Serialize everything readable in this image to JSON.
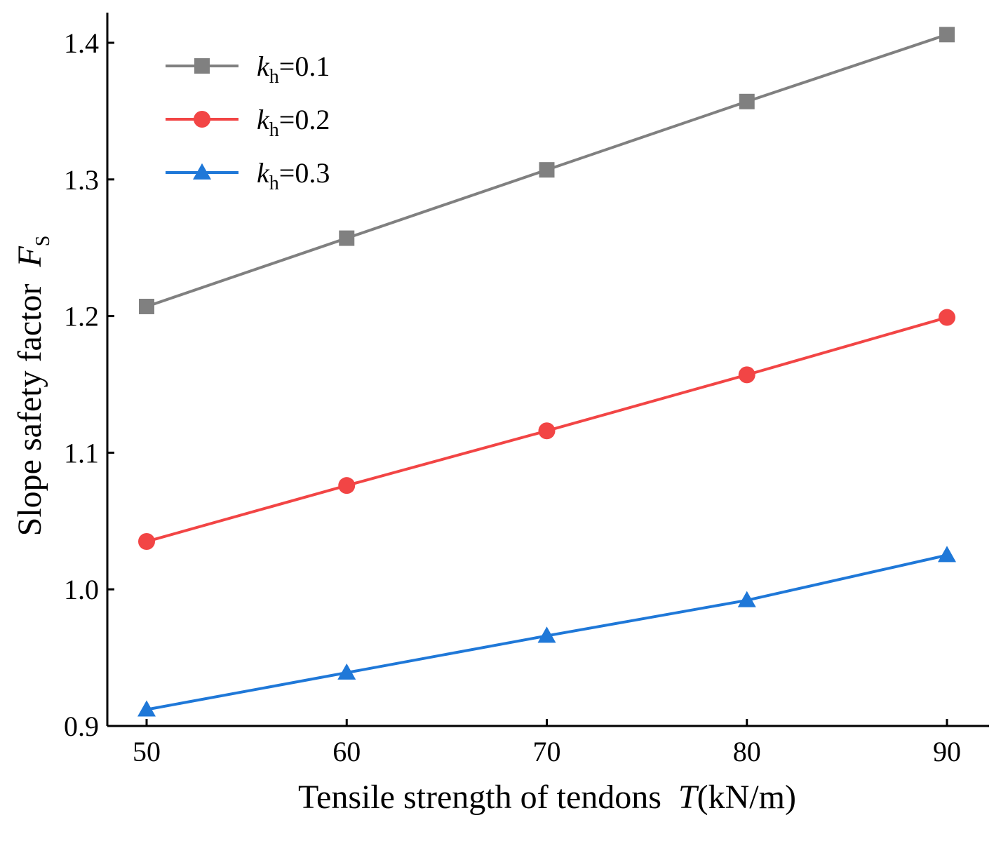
{
  "chart_data": {
    "type": "line",
    "title": "",
    "xlabel": {
      "text": "Tensile strength of tendons",
      "symbol": "T",
      "unit": "(kN/m)"
    },
    "ylabel": {
      "text": "Slope safety factor",
      "symbol": "F",
      "subscript": "S"
    },
    "x": [
      50,
      60,
      70,
      80,
      90
    ],
    "x_tick_labels": [
      "50",
      "60",
      "70",
      "80",
      "90"
    ],
    "xlim": [
      48,
      92
    ],
    "ylim": [
      0.9,
      1.42
    ],
    "y_ticks": [
      0.9,
      1.0,
      1.1,
      1.2,
      1.3,
      1.4
    ],
    "y_tick_labels": [
      "0.9",
      "1.0",
      "1.1",
      "1.2",
      "1.3",
      "1.4"
    ],
    "grid": false,
    "legend_position": "top-left",
    "series": [
      {
        "id": "kh01",
        "name": "k_h=0.1",
        "name_italic": "k",
        "name_sub": "h",
        "name_rest": "=0.1",
        "marker": "square",
        "color": "#808080",
        "values": [
          1.207,
          1.257,
          1.307,
          1.357,
          1.406
        ]
      },
      {
        "id": "kh02",
        "name": "k_h=0.2",
        "name_italic": "k",
        "name_sub": "h",
        "name_rest": "=0.2",
        "marker": "circle",
        "color": "#F24545",
        "values": [
          1.035,
          1.076,
          1.116,
          1.157,
          1.199
        ]
      },
      {
        "id": "kh03",
        "name": "k_h=0.3",
        "name_italic": "k",
        "name_sub": "h",
        "name_rest": "=0.3",
        "marker": "triangle",
        "color": "#1F78D8",
        "values": [
          0.912,
          0.939,
          0.966,
          0.992,
          1.025
        ]
      }
    ]
  }
}
